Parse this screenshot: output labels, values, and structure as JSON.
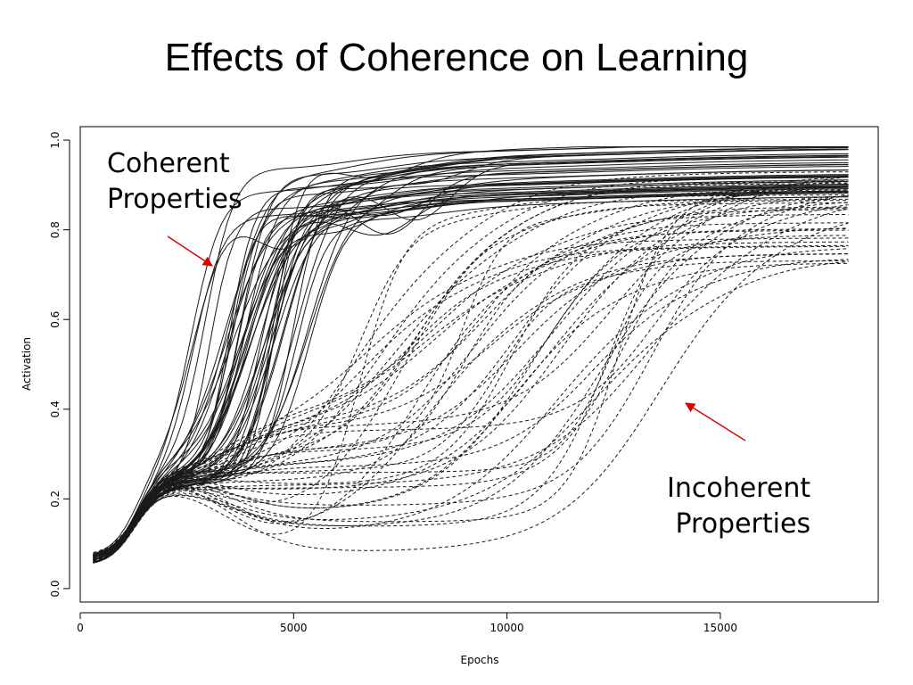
{
  "slide_title": "Effects of Coherence on Learning",
  "chart_data": {
    "type": "line",
    "title": "",
    "xlabel": "Epochs",
    "ylabel": "Activation",
    "xlim": [
      0,
      18700
    ],
    "ylim": [
      -0.03,
      1.03
    ],
    "x_ticks": [
      0,
      5000,
      10000,
      15000
    ],
    "y_ticks": [
      "0.0",
      "0.2",
      "0.4",
      "0.6",
      "0.8",
      "1.0"
    ],
    "grid": false,
    "line_color": "#1a1a1a",
    "arrow_color": "#dd0000",
    "groups": [
      {
        "label_lines": [
          "Coherent",
          "Properties"
        ],
        "line_style": "solid",
        "series_count": 45,
        "x_range": [
          300,
          18000
        ],
        "start_value": 0.06,
        "plateau_value": 0.24,
        "rise_x_range": [
          2600,
          5400
        ],
        "final_value_range": [
          0.84,
          0.98
        ]
      },
      {
        "label_lines": [
          "Incoherent",
          "Properties"
        ],
        "line_style": "dashed",
        "series_count": 45,
        "x_range": [
          300,
          18000
        ],
        "start_value": 0.06,
        "plateau_value": 0.24,
        "mid_value_range": [
          0.07,
          0.38
        ],
        "rise_x_range": [
          6000,
          14500
        ],
        "final_value_range": [
          0.71,
          0.92
        ]
      }
    ]
  }
}
